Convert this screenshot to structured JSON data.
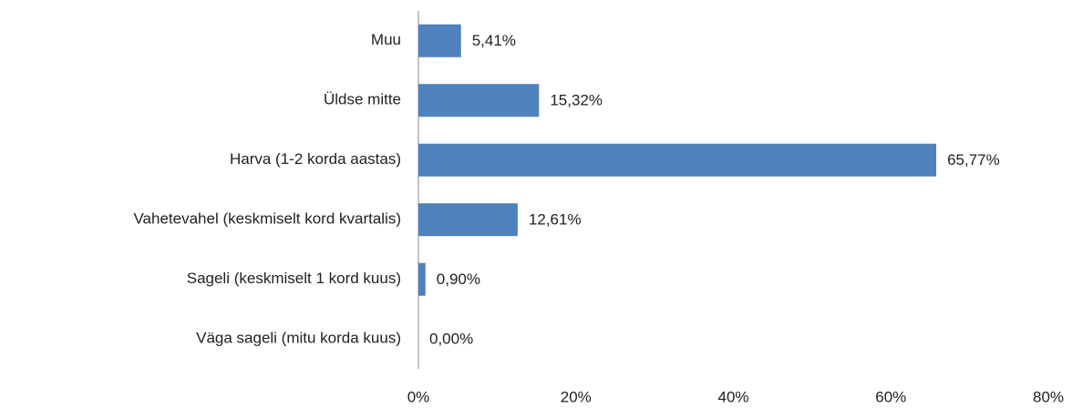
{
  "chart_data": {
    "type": "bar",
    "orientation": "horizontal",
    "categories": [
      "Muu",
      "Üldse mitte",
      "Harva (1-2 korda aastas)",
      "Vahetevahel (keskmiselt kord kvartalis)",
      "Sageli (keskmiselt 1 kord kuus)",
      "Väga sageli (mitu korda kuus)"
    ],
    "values": [
      5.41,
      15.32,
      65.77,
      12.61,
      0.9,
      0.0
    ],
    "value_labels": [
      "5,41%",
      "15,32%",
      "65,77%",
      "12,61%",
      "0,90%",
      "0,00%"
    ],
    "color": "#4f81bd",
    "xlim": [
      0,
      80
    ],
    "xticks": [
      {
        "value": 0,
        "label": "0%"
      },
      {
        "value": 20,
        "label": "20%"
      },
      {
        "value": 40,
        "label": "40%"
      },
      {
        "value": 60,
        "label": "60%"
      },
      {
        "value": 80,
        "label": "80%"
      }
    ],
    "grid": false
  }
}
